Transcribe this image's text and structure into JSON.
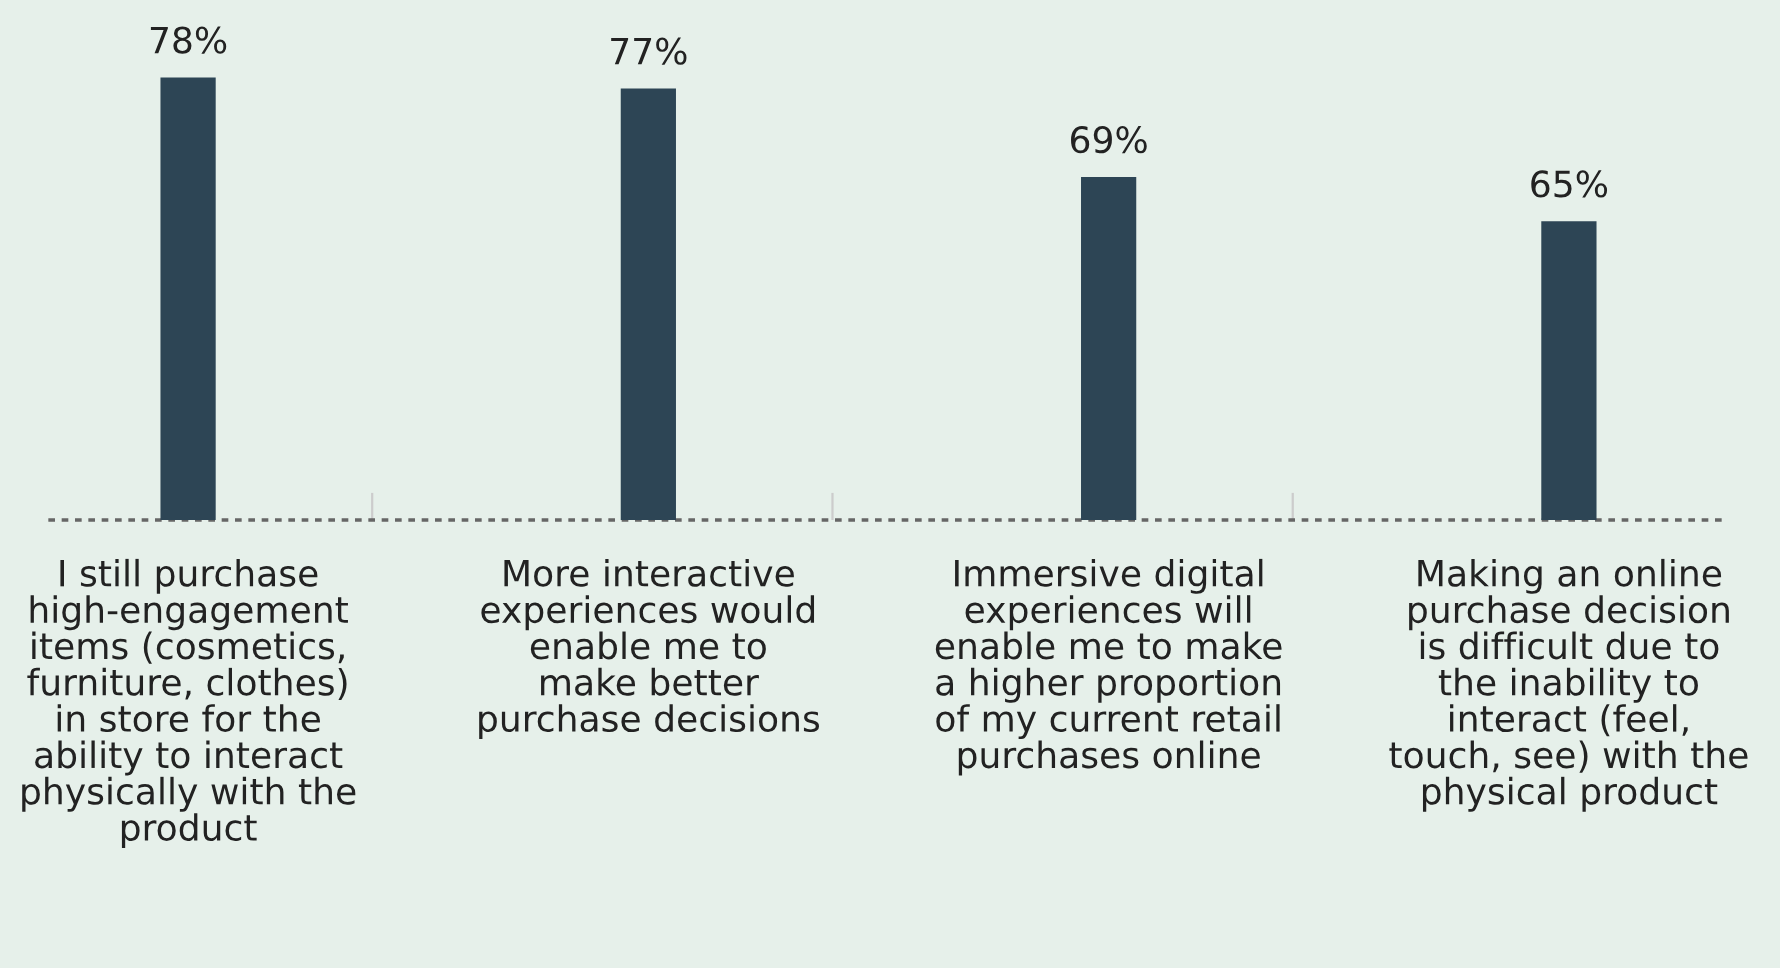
{
  "chart_data": {
    "type": "bar",
    "categories": [
      "I still purchase\nhigh-engagement\nitems (cosmetics,\nfurniture, clothes)\nin store for the\nability to interact\nphysically with the\nproduct",
      "More interactive\nexperiences would\nenable me to\nmake better\npurchase decisions",
      "Immersive digital\nexperiences will\nenable me to make\na higher proportion\nof my current retail\npurchases online",
      "Making an online\npurchase decision\nis difficult due to\nthe inability to\ninteract (feel,\ntouch, see) with the\nphysical product"
    ],
    "values": [
      78,
      77,
      69,
      65
    ],
    "value_labels": [
      "78%",
      "77%",
      "69%",
      "65%"
    ],
    "color": "#2d4555",
    "ylim": [
      38,
      85
    ],
    "grid": false
  }
}
